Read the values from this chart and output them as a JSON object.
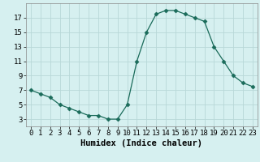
{
  "x": [
    0,
    1,
    2,
    3,
    4,
    5,
    6,
    7,
    8,
    9,
    10,
    11,
    12,
    13,
    14,
    15,
    16,
    17,
    18,
    19,
    20,
    21,
    22,
    23
  ],
  "y": [
    7,
    6.5,
    6,
    5,
    4.5,
    4,
    3.5,
    3.5,
    3,
    3,
    5,
    11,
    15,
    17.5,
    18,
    18,
    17.5,
    17,
    16.5,
    13,
    11,
    9,
    8,
    7.5
  ],
  "xlabel": "Humidex (Indice chaleur)",
  "xlim": [
    -0.5,
    23.5
  ],
  "ylim": [
    2,
    19
  ],
  "yticks": [
    3,
    5,
    7,
    9,
    11,
    13,
    15,
    17
  ],
  "xticks": [
    0,
    1,
    2,
    3,
    4,
    5,
    6,
    7,
    8,
    9,
    10,
    11,
    12,
    13,
    14,
    15,
    16,
    17,
    18,
    19,
    20,
    21,
    22,
    23
  ],
  "line_color": "#1a6b5a",
  "marker": "D",
  "marker_size": 2.5,
  "bg_color": "#d6f0f0",
  "grid_color": "#b8d8d8",
  "tick_fontsize": 6.5,
  "xlabel_fontsize": 7.5
}
